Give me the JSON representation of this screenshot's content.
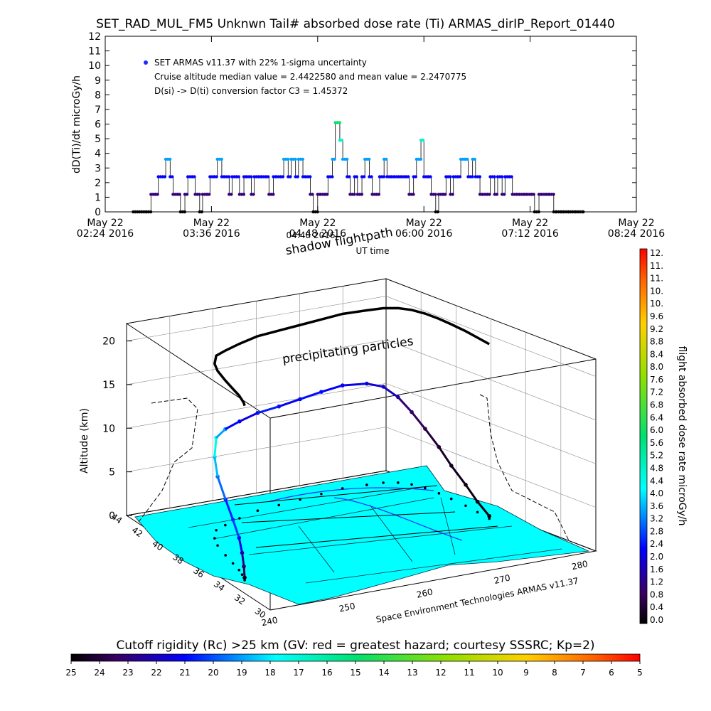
{
  "title": "SET_RAD_MUL_FM5 Unknwn Tail#  absorbed dose rate (Ti) ARMAS_dirIP_Report_01440",
  "chart_data": [
    {
      "type": "scatter",
      "panel": "top",
      "ylabel": "dD(Ti)/dt microGy/h",
      "xlabel": "",
      "ylim": [
        0,
        12
      ],
      "y_ticks": [
        "0",
        "1",
        "2",
        "3",
        "4",
        "5",
        "6",
        "7",
        "8",
        "9",
        "10",
        "11",
        "12"
      ],
      "x_ticks": [
        {
          "date": "May 22",
          "time": "02:24 2016"
        },
        {
          "date": "May 22",
          "time": "03:36 2016"
        },
        {
          "date": "May 22",
          "time": "04:48 2016"
        },
        {
          "date": "May 22",
          "time": "06:00 2016"
        },
        {
          "date": "May 22",
          "time": "07:12 2016"
        },
        {
          "date": "May 22",
          "time": "08:24 2016"
        }
      ],
      "legend_label": "SET ARMAS v11.37 with 22% 1-sigma uncertainty",
      "annotations": [
        "Cruise altitude median value = 2.4422580 and mean value = 2.2470775",
        "D(si) -> D(ti) conversion factor C3 = 1.45372"
      ],
      "series": [
        {
          "x": [
            "02:43",
            "02:52",
            "02:55",
            "02:58",
            "03:00",
            "03:03",
            "03:05",
            "03:08",
            "03:10",
            "03:13",
            "03:15",
            "03:18",
            "03:20",
            "03:23",
            "03:25",
            "03:28",
            "03:30",
            "03:33",
            "03:35",
            "03:38",
            "03:40",
            "03:43",
            "03:45",
            "03:48",
            "03:50",
            "03:53",
            "03:55",
            "03:58",
            "04:00",
            "04:03",
            "04:05",
            "04:08",
            "04:10",
            "04:13",
            "04:15",
            "04:18",
            "04:20",
            "04:23",
            "04:25",
            "04:28",
            "04:30",
            "04:33",
            "04:35",
            "04:38",
            "04:40",
            "04:43",
            "04:45",
            "04:48",
            "04:50",
            "04:53",
            "04:55",
            "04:58",
            "05:00",
            "05:03",
            "05:05",
            "05:08",
            "05:10",
            "05:13",
            "05:15",
            "05:18",
            "05:20",
            "05:23",
            "05:25",
            "05:28",
            "05:30",
            "05:33",
            "05:35",
            "05:38",
            "05:40",
            "05:43",
            "05:45",
            "05:48",
            "05:50",
            "05:53",
            "05:55",
            "05:58",
            "06:00",
            "06:03",
            "06:05",
            "06:08",
            "06:10",
            "06:13",
            "06:15",
            "06:18",
            "06:20",
            "06:23",
            "06:25",
            "06:28",
            "06:30",
            "06:33",
            "06:35",
            "06:38",
            "06:40",
            "06:43",
            "06:45",
            "06:48",
            "06:50",
            "06:53",
            "06:55",
            "06:58",
            "07:00",
            "07:03",
            "07:05",
            "07:08",
            "07:10",
            "07:13",
            "07:15",
            "07:18",
            "07:20",
            "07:23",
            "07:25",
            "07:28",
            "07:30",
            "07:33",
            "07:35",
            "07:38",
            "07:43",
            "07:48"
          ],
          "values": [
            0,
            0,
            1.2,
            1.2,
            2.4,
            2.4,
            3.6,
            2.4,
            1.2,
            1.2,
            0,
            1.2,
            2.4,
            2.4,
            1.2,
            0,
            1.2,
            1.2,
            2.4,
            2.4,
            3.6,
            2.4,
            2.4,
            1.2,
            2.4,
            2.4,
            1.2,
            2.4,
            2.4,
            1.2,
            2.4,
            2.4,
            2.4,
            2.4,
            1.2,
            2.4,
            2.4,
            2.4,
            3.6,
            2.4,
            3.6,
            2.4,
            3.6,
            2.4,
            2.4,
            1.2,
            0,
            1.2,
            1.2,
            1.2,
            2.4,
            3.6,
            6.1,
            4.9,
            3.6,
            2.4,
            1.2,
            2.4,
            1.2,
            2.4,
            3.6,
            2.4,
            1.2,
            1.2,
            2.4,
            3.6,
            2.4,
            2.4,
            2.4,
            2.4,
            2.4,
            2.4,
            1.2,
            2.4,
            3.6,
            4.9,
            2.4,
            2.4,
            1.2,
            0,
            1.2,
            1.2,
            2.4,
            1.2,
            2.4,
            2.4,
            3.6,
            3.6,
            2.4,
            3.6,
            2.4,
            1.2,
            1.2,
            1.2,
            2.4,
            1.2,
            2.4,
            1.2,
            2.4,
            2.4,
            1.2,
            1.2,
            1.2,
            1.2,
            1.2,
            1.2,
            0,
            1.2,
            1.2,
            1.2,
            1.2,
            0,
            0,
            0,
            0,
            0,
            0,
            0
          ]
        }
      ]
    },
    {
      "type": "scatter",
      "panel": "3d-flightpath",
      "title": "",
      "zlabel": "Altitude (km)",
      "z_ticks": [
        "0",
        "5",
        "10",
        "15",
        "20"
      ],
      "zlim": [
        0,
        22
      ],
      "lat_ticks": [
        "44",
        "42",
        "40",
        "38",
        "36",
        "34",
        "32",
        "30"
      ],
      "lon_ticks": [
        "240",
        "250",
        "260",
        "270",
        "280"
      ],
      "top_annotations": [
        "shadow flightpath",
        "UT time",
        "04:48 2016",
        "precipitating particles"
      ],
      "credit": "Space Environment Technologies ARMAS v11.37",
      "series": [
        {
          "lat": [
            34.0,
            34.3,
            34.7,
            35.3,
            36.2,
            37.3,
            38.6,
            39.5,
            40.4,
            40.8,
            41.3,
            41.8,
            42.0,
            42.2,
            42.4,
            42.6,
            42.5,
            42.4,
            42.1,
            41.6,
            40.9,
            40.0,
            39.1,
            38.0,
            37.0,
            36.0
          ],
          "lon": [
            242.0,
            242.3,
            242.6,
            243.0,
            243.4,
            243.9,
            244.6,
            245.4,
            246.8,
            248.5,
            251.0,
            254.0,
            257.0,
            260.0,
            263.0,
            266.0,
            269.0,
            271.0,
            272.5,
            273.6,
            274.4,
            275.0,
            275.4,
            275.8,
            276.0,
            276.2
          ],
          "alt": [
            0.3,
            1.3,
            2.5,
            3.7,
            5.0,
            6.4,
            7.9,
            9.3,
            10.6,
            11.0,
            11.1,
            11.2,
            11.3,
            11.5,
            11.7,
            11.8,
            11.6,
            11.0,
            9.8,
            8.3,
            6.8,
            5.3,
            3.8,
            2.4,
            1.2,
            0.3
          ],
          "dose": [
            0.2,
            0.8,
            1.4,
            2.2,
            2.8,
            2.6,
            3.2,
            3.8,
            4.6,
            3.6,
            2.4,
            2.2,
            2.6,
            2.3,
            2.5,
            2.4,
            2.2,
            2.0,
            1.8,
            1.2,
            0.9,
            0.6,
            0.4,
            0.3,
            0.2,
            0.1
          ]
        }
      ]
    }
  ],
  "right_colorbar": {
    "label": "flight absorbed dose rate microGy/h",
    "ticks": [
      "12.",
      "11.",
      "11.",
      "10.",
      "10.",
      "9.6",
      "9.2",
      "8.8",
      "8.4",
      "8.0",
      "7.6",
      "7.2",
      "6.8",
      "6.4",
      "6.0",
      "5.6",
      "5.2",
      "4.8",
      "4.4",
      "4.0",
      "3.6",
      "3.2",
      "2.8",
      "2.4",
      "2.0",
      "1.6",
      "1.2",
      "0.8",
      "0.4",
      "0.0"
    ]
  },
  "bottom_colorbar": {
    "label": "Cutoff rigidity (Rc) >25 km (GV: red = greatest hazard; courtesy SSSRC; Kp=2)",
    "ticks": [
      "25",
      "24",
      "23",
      "22",
      "21",
      "20",
      "19",
      "18",
      "17",
      "16",
      "15",
      "14",
      "13",
      "12",
      "11",
      "10",
      "9",
      "8",
      "7",
      "6",
      "5"
    ]
  },
  "colors": {
    "flight_low": "#2b0048",
    "flight_mid": "#1a2cff",
    "flight_high": "#00e03a",
    "land": "#00ffff",
    "axes": "#000000"
  }
}
